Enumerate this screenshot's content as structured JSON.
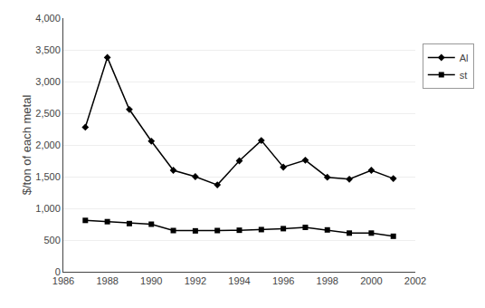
{
  "chart_data": {
    "type": "line",
    "x": [
      1987,
      1988,
      1989,
      1990,
      1991,
      1992,
      1993,
      1994,
      1995,
      1996,
      1997,
      1998,
      1999,
      2000,
      2001
    ],
    "series": [
      {
        "name": "Al",
        "color": "#000000",
        "marker": "diamond",
        "values": [
          2280,
          3380,
          2560,
          2060,
          1600,
          1500,
          1370,
          1750,
          2070,
          1650,
          1760,
          1490,
          1460,
          1600,
          1470
        ]
      },
      {
        "name": "st",
        "color": "#000000",
        "marker": "square",
        "values": [
          810,
          790,
          760,
          750,
          650,
          645,
          650,
          655,
          665,
          680,
          700,
          660,
          610,
          610,
          560
        ]
      }
    ],
    "ylabel": "$/ton of each metal",
    "xlim": [
      1986,
      2002
    ],
    "xticks": [
      1986,
      1988,
      1990,
      1992,
      1994,
      1996,
      1998,
      2000,
      2002
    ],
    "ylim": [
      0,
      4000
    ],
    "yticks": [
      0,
      500,
      {
        "value": 1000,
        "label": "1,000"
      },
      {
        "value": 1500,
        "label": "1,500"
      },
      {
        "value": 2000,
        "label": "2,000"
      },
      {
        "value": 2500,
        "label": "2,500"
      },
      {
        "value": 3000,
        "label": "3,000"
      },
      {
        "value": 3500,
        "label": "3,500"
      },
      {
        "value": 4000,
        "label": "4,000"
      }
    ],
    "grid": "y",
    "legend": "right"
  }
}
